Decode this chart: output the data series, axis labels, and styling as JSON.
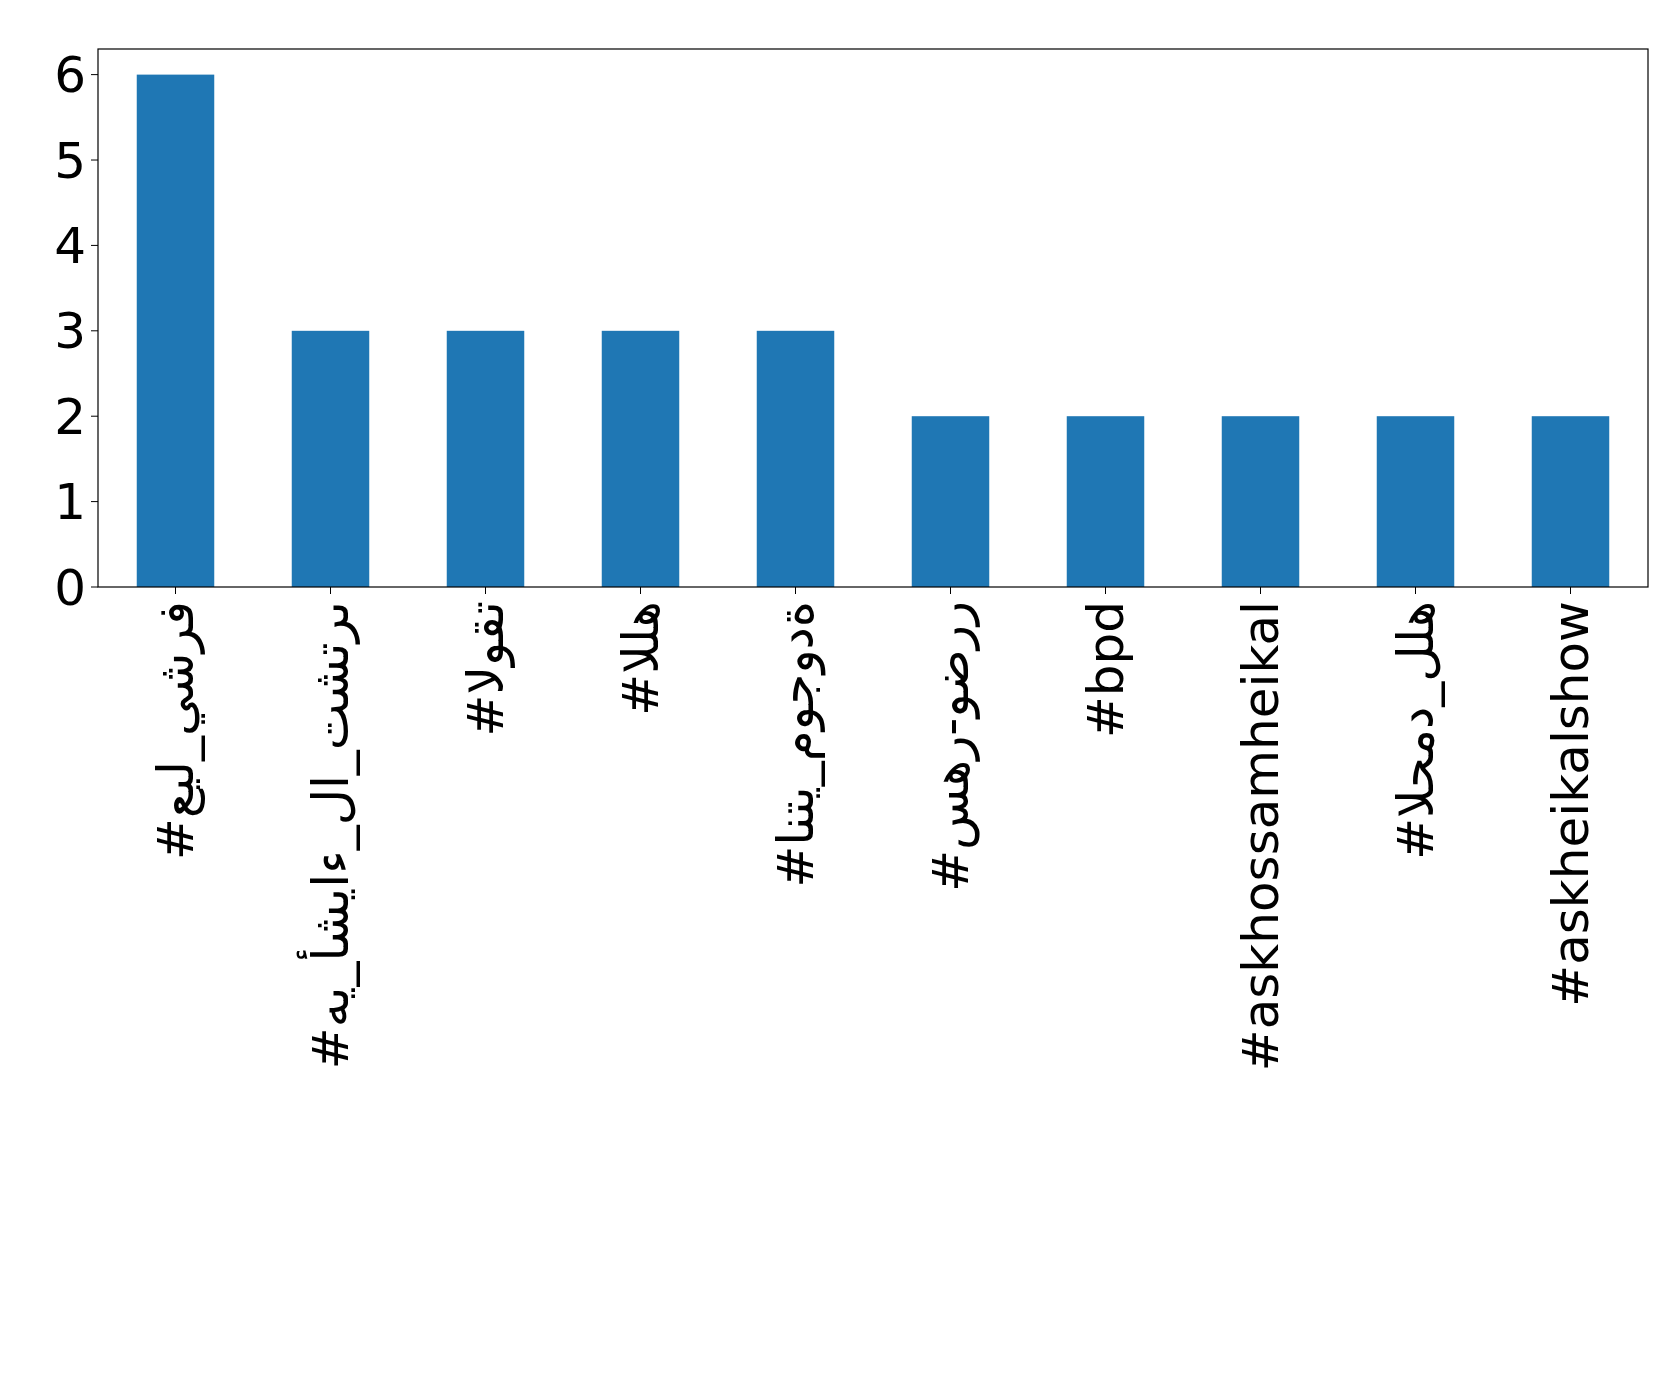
{
  "chart_data": {
    "type": "bar",
    "categories": [
      "#عيل_يشرف",
      "#هي_أشياء_لا_تشترى",
      "#الوقت",
      "#الله",
      "#انتي_موجودة",
      "#سهر-وضرر",
      "#bpd",
      "#askhossamheikal",
      "#الحمد_لله",
      "#askheikalshow"
    ],
    "values": [
      6,
      3,
      3,
      3,
      3,
      2,
      2,
      2,
      2,
      2
    ],
    "color": "#1f77b4",
    "ylim": [
      0,
      6.3
    ],
    "yticks": [
      0,
      1,
      2,
      3,
      4,
      5,
      6
    ],
    "grid": false
  }
}
